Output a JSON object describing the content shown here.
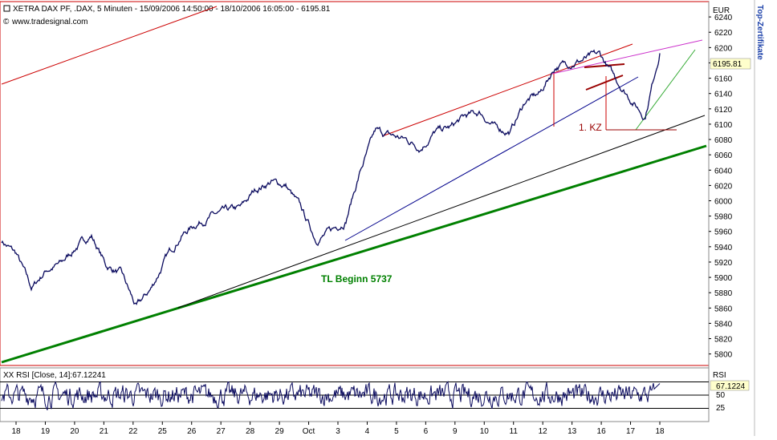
{
  "header": {
    "title": "XETRA DAX PF, .DAX, 5 Minuten - 15/09/2006 14:50:00 - 18/10/2006 16:05:00 - 6195.81",
    "source": "www.tradesignal.com",
    "currency": "EUR",
    "side_label": "Top-Zertifikate"
  },
  "rsi_panel": {
    "title": "XX RSI [Close, 14]:67.12241",
    "axis_label": "RSI",
    "value_label": "67.1224",
    "yticks": [
      "50",
      "25"
    ]
  },
  "chart_data": {
    "type": "line",
    "title": "XETRA DAX PF, .DAX, 5 Minuten",
    "ylabel": "EUR",
    "ylim": [
      5785,
      6260
    ],
    "yticks": [
      5800,
      5820,
      5840,
      5860,
      5880,
      5900,
      5920,
      5940,
      5960,
      5980,
      6000,
      6020,
      6040,
      6060,
      6080,
      6100,
      6120,
      6140,
      6160,
      6180,
      6200,
      6220,
      6240
    ],
    "current_value": 6195.81,
    "xlabels": [
      "18",
      "19",
      "20",
      "21",
      "22",
      "25",
      "26",
      "27",
      "28",
      "29",
      "Oct",
      "3",
      "4",
      "5",
      "6",
      "9",
      "10",
      "11",
      "12",
      "13",
      "16",
      "17",
      "18"
    ],
    "series": [
      {
        "name": "XETRA DAX PF",
        "x": [
          "18 Sep",
          "19 Sep",
          "19 Sep",
          "20 Sep",
          "20 Sep",
          "21 Sep",
          "21 Sep",
          "22 Sep",
          "22 Sep",
          "25 Sep",
          "25 Sep",
          "26 Sep",
          "26 Sep",
          "27 Sep",
          "27 Sep",
          "28 Sep",
          "28 Sep",
          "29 Sep",
          "29 Sep",
          "2 Oct",
          "2 Oct",
          "3 Oct",
          "3 Oct",
          "4 Oct",
          "4 Oct",
          "5 Oct",
          "5 Oct",
          "6 Oct",
          "6 Oct",
          "9 Oct",
          "9 Oct",
          "10 Oct",
          "10 Oct",
          "11 Oct",
          "11 Oct",
          "12 Oct",
          "12 Oct",
          "13 Oct",
          "13 Oct",
          "16 Oct",
          "16 Oct",
          "17 Oct",
          "17 Oct",
          "18 Oct",
          "18 Oct"
        ],
        "values": [
          5948,
          5930,
          5885,
          5910,
          5918,
          5940,
          5955,
          5915,
          5905,
          5860,
          5885,
          5925,
          5955,
          5970,
          5980,
          5985,
          5990,
          6015,
          6025,
          6020,
          5990,
          5950,
          5960,
          5975,
          6040,
          6090,
          6085,
          6080,
          6070,
          6090,
          6095,
          6110,
          6115,
          6095,
          6090,
          6130,
          6140,
          6175,
          6180,
          6185,
          6190,
          6160,
          6135,
          6110,
          6195.81
        ]
      }
    ],
    "trendlines": [
      {
        "name": "TL Beginn 5737",
        "color": "#008000"
      },
      {
        "name": "support-line",
        "color": "#000000"
      },
      {
        "name": "channel-lower",
        "color": "#00008b"
      },
      {
        "name": "channel-upper",
        "color": "#cc0000"
      },
      {
        "name": "top-line",
        "color": "#cc33cc"
      },
      {
        "name": "rising-line",
        "color": "#33aa33"
      }
    ],
    "annotations": [
      "TL Beginn 5737",
      "1. KZ"
    ],
    "rsi": {
      "name": "RSI [Close, 14]",
      "last": 67.12241,
      "levels": [
        75,
        50,
        25
      ]
    },
    "grid": false
  },
  "colors": {
    "price": "#0a0a5e",
    "border": "#cc0000",
    "tl_green": "#008000",
    "label_red": "#990000",
    "value_box": "#ffffcc"
  }
}
